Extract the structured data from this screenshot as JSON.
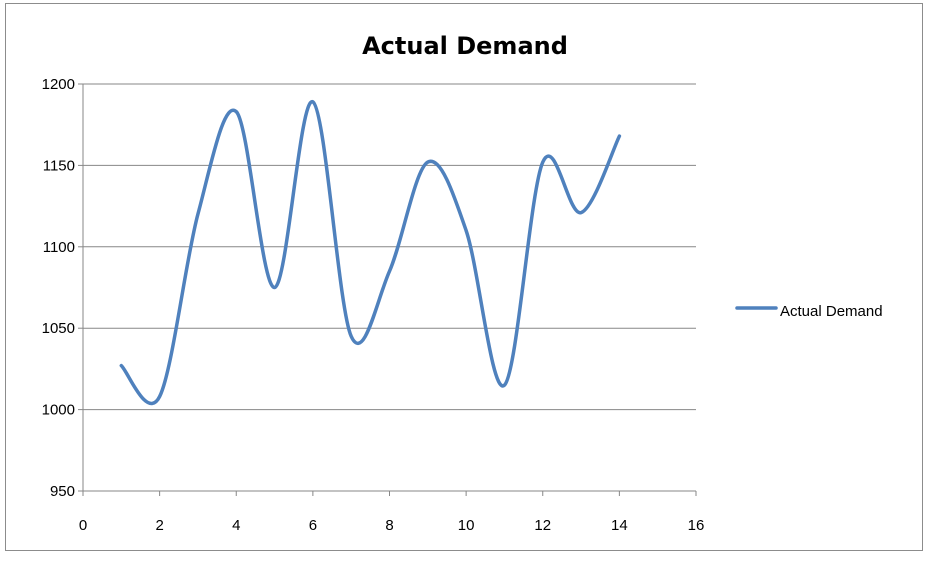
{
  "chart_data": {
    "type": "line",
    "title": "Actual Demand",
    "xlabel": "",
    "ylabel": "",
    "xlim": [
      0,
      16
    ],
    "ylim": [
      950,
      1200
    ],
    "xticks": [
      0,
      2,
      4,
      6,
      8,
      10,
      12,
      14,
      16
    ],
    "yticks": [
      950,
      1000,
      1050,
      1100,
      1150,
      1200
    ],
    "grid": "horizontal",
    "smooth": true,
    "legend_position": "right",
    "series": [
      {
        "name": "Actual Demand",
        "color": "#4f81bd",
        "x": [
          1,
          2,
          3,
          4,
          5,
          6,
          7,
          8,
          9,
          10,
          11,
          12,
          13,
          14
        ],
        "y": [
          1027,
          1008,
          1120,
          1183,
          1075,
          1189,
          1045,
          1085,
          1152,
          1110,
          1015,
          1152,
          1121,
          1168
        ]
      }
    ]
  }
}
